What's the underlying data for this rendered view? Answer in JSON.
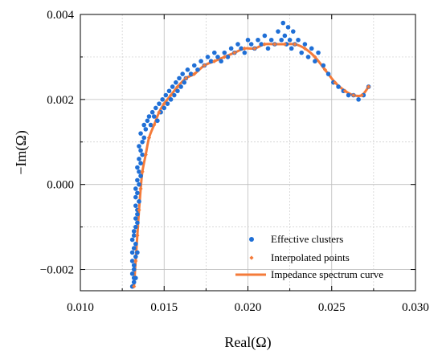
{
  "chart_data": {
    "type": "scatter",
    "xlabel": "Real(Ω)",
    "ylabel": "−Im(Ω)",
    "xlim": [
      0.01,
      0.03
    ],
    "ylim": [
      -0.0025,
      0.004
    ],
    "x_ticks": [
      "0.010",
      "0.015",
      "0.020",
      "0.025",
      "0.030"
    ],
    "y_ticks": [
      "−0.002",
      "0.000",
      "0.002",
      "0.004"
    ],
    "grid": true,
    "legend_position": "bottom-right",
    "series": [
      {
        "name": "Effective clusters",
        "kind": "scatter",
        "color": "#1f6fd6",
        "x": [
          0.0131,
          0.0132,
          0.0131,
          0.0133,
          0.0132,
          0.0133,
          0.0132,
          0.0134,
          0.0131,
          0.0133,
          0.0132,
          0.0134,
          0.0133,
          0.0132,
          0.0131,
          0.0133,
          0.0134,
          0.0132,
          0.0133,
          0.0131,
          0.0132,
          0.0134,
          0.0133,
          0.0135,
          0.0134,
          0.0133,
          0.0135,
          0.0134,
          0.0136,
          0.0135,
          0.0134,
          0.0136,
          0.0135,
          0.0137,
          0.0136,
          0.0135,
          0.0137,
          0.0138,
          0.0136,
          0.0139,
          0.0138,
          0.014,
          0.0141,
          0.0142,
          0.0143,
          0.0144,
          0.0145,
          0.0146,
          0.0147,
          0.0148,
          0.0149,
          0.015,
          0.0151,
          0.0152,
          0.0153,
          0.0154,
          0.0155,
          0.0156,
          0.0157,
          0.0158,
          0.0159,
          0.016,
          0.0161,
          0.0162,
          0.0163,
          0.0164,
          0.0166,
          0.0168,
          0.017,
          0.0172,
          0.0174,
          0.0176,
          0.0178,
          0.018,
          0.0182,
          0.0184,
          0.0186,
          0.0188,
          0.019,
          0.0192,
          0.0194,
          0.0196,
          0.0198,
          0.02,
          0.0202,
          0.0204,
          0.0206,
          0.0208,
          0.021,
          0.0212,
          0.0214,
          0.0216,
          0.0218,
          0.022,
          0.0221,
          0.0222,
          0.0223,
          0.0224,
          0.0225,
          0.0226,
          0.0227,
          0.0228,
          0.023,
          0.0232,
          0.0234,
          0.0236,
          0.0238,
          0.024,
          0.0242,
          0.0245,
          0.0248,
          0.0251,
          0.0254,
          0.0257,
          0.026,
          0.0263,
          0.0266,
          0.0269,
          0.0272
        ],
        "y": [
          -0.0024,
          -0.0023,
          -0.0021,
          -0.0022,
          -0.0019,
          -0.0017,
          -0.0015,
          -0.0016,
          -0.0013,
          -0.0014,
          -0.0011,
          -0.0009,
          -0.0008,
          -0.002,
          -0.0018,
          -0.001,
          -0.0007,
          -0.0012,
          -0.0005,
          -0.0016,
          -0.0022,
          -0.0006,
          -0.0003,
          -0.0004,
          -0.0002,
          -0.0001,
          0.0,
          0.0001,
          0.0002,
          0.0003,
          0.0004,
          0.0005,
          0.0006,
          0.0007,
          0.0008,
          0.0009,
          0.001,
          0.0011,
          0.0012,
          0.0013,
          0.0014,
          0.0015,
          0.0016,
          0.0014,
          0.0017,
          0.0016,
          0.0018,
          0.0015,
          0.0019,
          0.0017,
          0.002,
          0.0018,
          0.0021,
          0.0019,
          0.0022,
          0.002,
          0.0023,
          0.0021,
          0.0024,
          0.0022,
          0.0025,
          0.0023,
          0.0026,
          0.0024,
          0.0025,
          0.0027,
          0.0026,
          0.0028,
          0.0027,
          0.0029,
          0.0028,
          0.003,
          0.0029,
          0.0031,
          0.003,
          0.0029,
          0.0031,
          0.003,
          0.0032,
          0.0031,
          0.0033,
          0.0032,
          0.0031,
          0.0034,
          0.0033,
          0.0032,
          0.0034,
          0.0033,
          0.0035,
          0.0032,
          0.0034,
          0.0033,
          0.0036,
          0.0034,
          0.0038,
          0.0035,
          0.0033,
          0.0037,
          0.0034,
          0.0032,
          0.0036,
          0.0033,
          0.0034,
          0.0031,
          0.0033,
          0.003,
          0.0032,
          0.0029,
          0.0031,
          0.0028,
          0.0026,
          0.0024,
          0.0023,
          0.0022,
          0.0021,
          0.0021,
          0.002,
          0.0021,
          0.0023
        ]
      },
      {
        "name": "Interpolated points",
        "kind": "scatter",
        "color": "#f47b3a",
        "x": [
          0.0132,
          0.0133,
          0.0134,
          0.0135,
          0.0136,
          0.0137,
          0.0139,
          0.0141,
          0.0144,
          0.0147,
          0.015,
          0.0154,
          0.0158,
          0.0163,
          0.0168,
          0.0174,
          0.018,
          0.0186,
          0.0192,
          0.0198,
          0.0204,
          0.021,
          0.0216,
          0.0222,
          0.0228,
          0.0234,
          0.024,
          0.0246,
          0.0252,
          0.0258,
          0.0263,
          0.0268,
          0.0272
        ],
        "y": [
          -0.0024,
          -0.0018,
          -0.0012,
          -0.0006,
          -0.0001,
          0.0003,
          0.0007,
          0.0011,
          0.0014,
          0.0017,
          0.0019,
          0.0021,
          0.0023,
          0.0025,
          0.0026,
          0.0028,
          0.0029,
          0.003,
          0.0031,
          0.0032,
          0.0032,
          0.0033,
          0.0033,
          0.0033,
          0.0033,
          0.0032,
          0.003,
          0.0027,
          0.0024,
          0.0022,
          0.0021,
          0.0021,
          0.0023
        ]
      },
      {
        "name": "Impedance spectrum curve",
        "kind": "line",
        "color": "#f47b3a",
        "x": [
          0.0132,
          0.0133,
          0.0134,
          0.0135,
          0.0136,
          0.0137,
          0.0139,
          0.0141,
          0.0144,
          0.0147,
          0.015,
          0.0154,
          0.0158,
          0.0163,
          0.0168,
          0.0174,
          0.018,
          0.0186,
          0.0192,
          0.0198,
          0.0204,
          0.021,
          0.0216,
          0.0222,
          0.0228,
          0.0234,
          0.024,
          0.0246,
          0.0252,
          0.0258,
          0.0263,
          0.0268,
          0.0272
        ],
        "y": [
          -0.0024,
          -0.0018,
          -0.0012,
          -0.0006,
          -0.0001,
          0.0003,
          0.0007,
          0.0011,
          0.0014,
          0.0017,
          0.0019,
          0.0021,
          0.0023,
          0.0025,
          0.0026,
          0.0028,
          0.0029,
          0.003,
          0.0031,
          0.0032,
          0.0032,
          0.0033,
          0.0033,
          0.0033,
          0.0033,
          0.0032,
          0.003,
          0.0027,
          0.0024,
          0.0022,
          0.0021,
          0.0021,
          0.0023
        ]
      }
    ]
  }
}
